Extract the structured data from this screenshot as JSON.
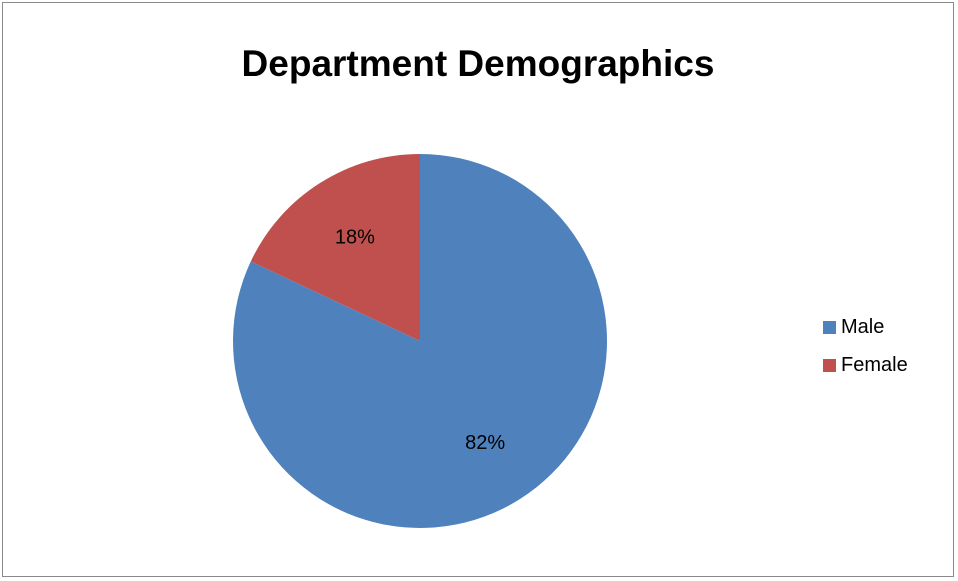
{
  "chart_data": {
    "type": "pie",
    "title": "Department Demographics",
    "series": [
      {
        "name": "Male",
        "value": 82,
        "label": "82%",
        "color": "#4f81bd"
      },
      {
        "name": "Female",
        "value": 18,
        "label": "18%",
        "color": "#c0504d"
      }
    ],
    "legend_position": "right"
  }
}
